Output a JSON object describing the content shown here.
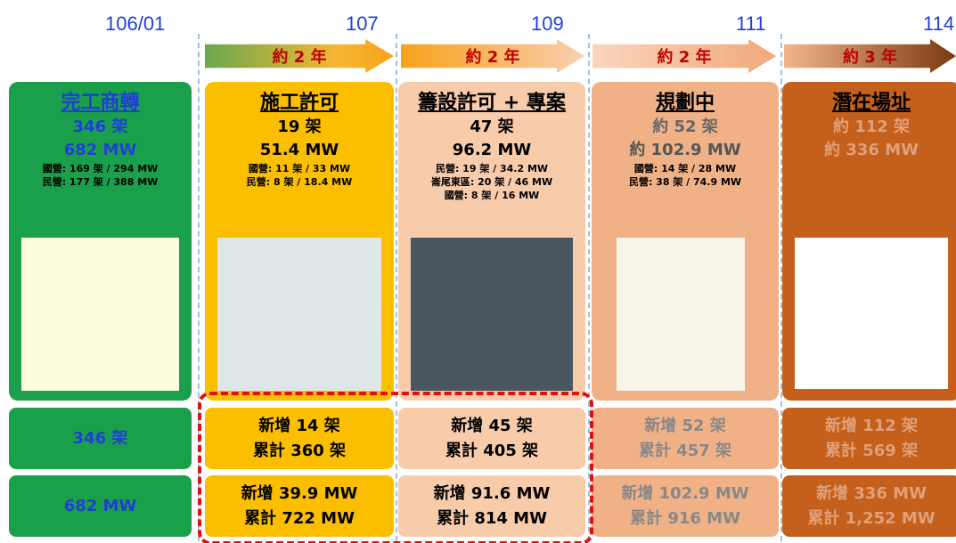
{
  "timeline": [
    "106/01",
    "107",
    "109",
    "111",
    "114"
  ],
  "arrows": [
    "約 2 年",
    "約 2 年",
    "約 2 年",
    "約 3 年"
  ],
  "columns": [
    {
      "title": "完工商轉",
      "units": "346 架",
      "mw": "682 MW",
      "details": [
        "國營: 169 架 / 294 MW",
        "民營: 177 架 / 388 MW"
      ],
      "units_row": [
        "346 架"
      ],
      "mw_row": [
        "682 MW"
      ]
    },
    {
      "title": "施工許可",
      "units": "19 架",
      "mw": "51.4 MW",
      "details": [
        "國營: 11 架 / 33 MW",
        "民營: 8 架 / 18.4 MW"
      ],
      "units_row": [
        "新增 14 架",
        "累計 360 架"
      ],
      "mw_row": [
        "新增 39.9 MW",
        "累計 722 MW"
      ]
    },
    {
      "title": "籌設許可 + 專案",
      "units": "47 架",
      "mw": "96.2 MW",
      "details": [
        "民營: 19 架 / 34.2 MW",
        "崙尾東區: 20 架 / 46 MW",
        "國營: 8 架 / 16 MW"
      ],
      "units_row": [
        "新增 45 架",
        "累計 405 架"
      ],
      "mw_row": [
        "新增 91.6 MW",
        "累計 814 MW"
      ]
    },
    {
      "title": "規劃中",
      "units": "約 52 架",
      "mw": "約 102.9 MW",
      "details": [
        "國營: 14 架 / 28 MW",
        "民營: 38 架 / 74.9 MW"
      ],
      "units_row": [
        "新增 52 架",
        "累計 457 架"
      ],
      "mw_row": [
        "新增 102.9 MW",
        "累計 916 MW"
      ]
    },
    {
      "title": "潛在場址",
      "units": "約 112 架",
      "mw": "約 336 MW",
      "details": [],
      "units_row": [
        "新增 112 架",
        "累計 569 架"
      ],
      "mw_row": [
        "新增 336 MW",
        "累計 1,252 MW"
      ]
    }
  ]
}
